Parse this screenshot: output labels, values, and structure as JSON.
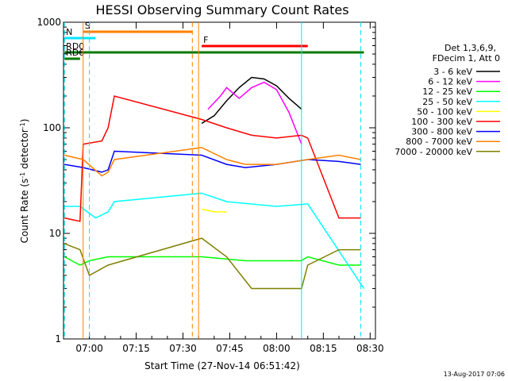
{
  "chart_data": {
    "type": "line",
    "title": "HESSI Observing Summary Count Rates",
    "xlabel": "Start Time (27-Nov-14 06:51:42)",
    "ylabel_main": "Count Rate (s",
    "ylabel_sup1": "-1",
    "ylabel_mid": " detector",
    "ylabel_sup2": "-1",
    "ylabel_end": ")",
    "yscale": "log",
    "ylim": [
      1,
      1000
    ],
    "xlim": [
      "06:51:42",
      "08:31:42"
    ],
    "x_ticks": [
      "07:00",
      "07:15",
      "07:30",
      "07:45",
      "08:00",
      "08:15",
      "08:30"
    ],
    "y_ticks": [
      "1",
      "10",
      "100",
      "1000"
    ],
    "legend_header": [
      "Det 1,3,6,9,",
      "FDecim 1, Att 0"
    ],
    "footer_date": "13-Aug-2017 07:06",
    "flags": [
      {
        "label": "S",
        "color": "#ff8000",
        "start": "06:58",
        "end": "07:33"
      },
      {
        "label": "N",
        "color": "#00e5ff",
        "start": "06:52",
        "end": "07:02"
      },
      {
        "label": "F",
        "color": "#ff0000",
        "start": "07:36",
        "end": "08:10"
      },
      {
        "label": "RD0",
        "color": "#007800",
        "start": "06:52",
        "end": "08:28"
      },
      {
        "label": "RD6",
        "color": "#007800",
        "start": "06:52",
        "end": "06:57"
      }
    ],
    "series": [
      {
        "name": "3 - 6 keV",
        "color": "#000000",
        "x": [
          "07:36",
          "07:40",
          "07:44",
          "07:48",
          "07:52",
          "07:56",
          "08:00",
          "08:04",
          "08:08"
        ],
        "values": [
          110,
          130,
          180,
          240,
          300,
          290,
          250,
          190,
          150
        ]
      },
      {
        "name": "6 - 12 keV",
        "color": "#ff00ff",
        "x": [
          "07:38",
          "07:42",
          "07:44",
          "07:48",
          "07:52",
          "07:56",
          "08:00",
          "08:04",
          "08:08"
        ],
        "values": [
          150,
          200,
          240,
          190,
          240,
          270,
          230,
          140,
          70
        ]
      },
      {
        "name": "12 - 25 keV",
        "color": "#00ff00",
        "x": [
          "06:52",
          "06:57",
          "07:00",
          "07:06",
          "07:36",
          "07:50",
          "08:08",
          "08:10",
          "08:20",
          "08:27"
        ],
        "values": [
          6,
          5,
          5.5,
          6,
          6,
          5.5,
          5.5,
          6,
          5,
          5
        ]
      },
      {
        "name": "25 - 50 keV",
        "color": "#00ffff",
        "x": [
          "06:52",
          "06:57",
          "07:02",
          "07:06",
          "07:08",
          "07:36",
          "07:44",
          "08:00",
          "08:10",
          "08:28"
        ],
        "values": [
          18,
          18,
          14,
          16,
          20,
          24,
          20,
          18,
          19,
          3
        ]
      },
      {
        "name": "50 - 100 keV",
        "color": "#ffff00",
        "x": [
          "07:36",
          "07:40",
          "07:44"
        ],
        "values": [
          17,
          16,
          16
        ]
      },
      {
        "name": "100 - 300 keV",
        "color": "#ff0000",
        "x": [
          "06:52",
          "06:57",
          "06:58",
          "07:04",
          "07:06",
          "07:08",
          "07:36",
          "07:44",
          "07:52",
          "08:00",
          "08:08",
          "08:10",
          "08:20",
          "08:27"
        ],
        "values": [
          14,
          13,
          70,
          75,
          100,
          200,
          120,
          100,
          85,
          80,
          85,
          80,
          14,
          14
        ]
      },
      {
        "name": "300 - 800 keV",
        "color": "#0000ff",
        "x": [
          "06:52",
          "06:58",
          "07:04",
          "07:06",
          "07:08",
          "07:36",
          "07:44",
          "07:50",
          "08:00",
          "08:10",
          "08:20",
          "08:27"
        ],
        "values": [
          45,
          42,
          38,
          40,
          60,
          55,
          45,
          42,
          45,
          50,
          48,
          45
        ]
      },
      {
        "name": "800 - 7000 keV",
        "color": "#ff8000",
        "x": [
          "06:52",
          "06:58",
          "07:04",
          "07:06",
          "07:08",
          "07:36",
          "07:44",
          "07:50",
          "08:00",
          "08:10",
          "08:20",
          "08:27"
        ],
        "values": [
          55,
          50,
          35,
          38,
          50,
          65,
          50,
          45,
          45,
          50,
          55,
          50
        ]
      },
      {
        "name": "7000 - 20000 keV",
        "color": "#808000",
        "x": [
          "06:52",
          "06:57",
          "07:00",
          "07:06",
          "07:36",
          "07:44",
          "07:52",
          "08:00",
          "08:08",
          "08:10",
          "08:20",
          "08:27"
        ],
        "values": [
          8,
          7,
          4,
          5,
          9,
          6,
          3,
          3,
          3,
          5,
          7,
          7
        ]
      }
    ]
  }
}
